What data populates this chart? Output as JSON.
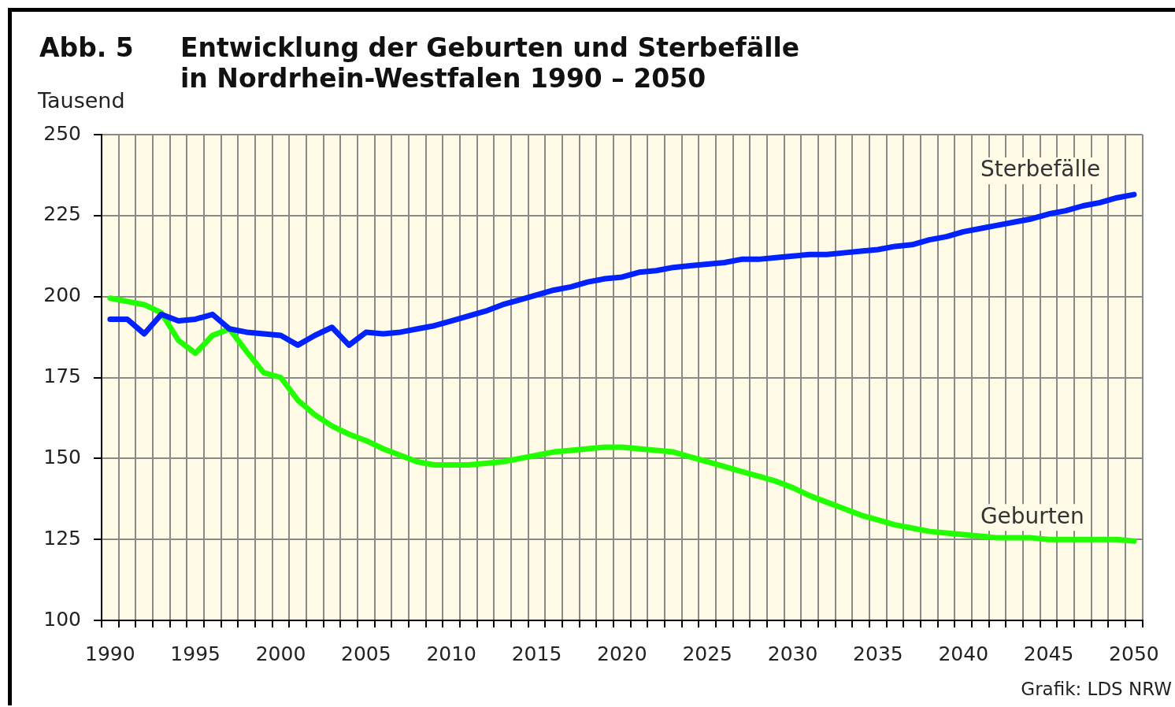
{
  "chart_data": {
    "type": "line",
    "title": "Entwicklung der Geburten und Sterbefälle\nin Nordrhein-Westfalen 1990 – 2050",
    "ylabel": "Tausend",
    "annotations": [
      "Abb. 5",
      "Grafik: LDS NRW"
    ],
    "categories": [
      "1990",
      null,
      null,
      null,
      null,
      "1995",
      null,
      null,
      null,
      null,
      "2000",
      null,
      null,
      null,
      null,
      "2005",
      null,
      null,
      null,
      null,
      "2010",
      null,
      null,
      null,
      null,
      "2015",
      null,
      null,
      null,
      null,
      "2020",
      null,
      null,
      null,
      null,
      "2025",
      null,
      null,
      null,
      null,
      "2030",
      null,
      null,
      null,
      null,
      "2035",
      null,
      null,
      null,
      null,
      "2040",
      null,
      null,
      null,
      null,
      "2045",
      null,
      null,
      null,
      null,
      "2050"
    ],
    "series": [
      {
        "name": "Sterbefälle",
        "color": "#0022ff",
        "values": [
          193,
          193,
          188.5,
          194.5,
          192.5,
          193,
          194.5,
          190,
          189,
          188.5,
          188,
          185,
          188,
          190.5,
          185,
          189,
          188.5,
          189,
          190,
          191,
          192.5,
          194,
          195.5,
          197.5,
          199,
          200.5,
          202,
          203,
          204.5,
          205.5,
          206,
          207.5,
          208,
          209,
          209.5,
          210,
          210.5,
          211.5,
          211.5,
          212,
          212.5,
          213,
          213,
          213.5,
          214,
          214.5,
          215.5,
          216,
          217.5,
          218.5,
          220,
          221,
          222,
          223,
          224,
          225.5,
          226.5,
          228,
          229,
          230.5,
          231.5
        ]
      },
      {
        "name": "Geburten",
        "color": "#22ff00",
        "values": [
          199.5,
          198.5,
          197.5,
          195,
          186.5,
          182.5,
          188,
          190,
          183,
          176.5,
          175,
          168,
          163.5,
          160,
          157.5,
          155.5,
          153,
          151,
          149,
          148,
          148,
          148,
          148.5,
          149,
          150,
          151,
          152,
          152.5,
          153,
          153.5,
          153.5,
          153,
          152.5,
          152,
          150.5,
          149,
          147.5,
          146,
          144.5,
          143,
          141,
          138.5,
          136.5,
          134.5,
          132.5,
          131,
          129.5,
          128.5,
          127.5,
          127,
          126.5,
          126,
          125.5,
          125.5,
          125.5,
          125,
          125,
          125,
          125,
          125,
          124.5
        ]
      }
    ],
    "ylim": [
      100,
      250
    ],
    "yticks": [
      100,
      125,
      150,
      175,
      200,
      225,
      250
    ],
    "grid": true
  }
}
